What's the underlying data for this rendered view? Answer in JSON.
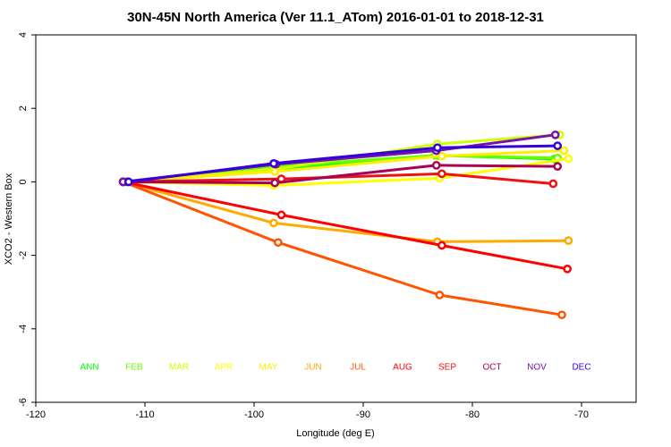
{
  "chart_data": {
    "type": "line",
    "title": "30N-45N North America (Ver 11.1_ATom)   2016-01-01 to 2018-12-31",
    "xlabel": "Longitude (deg E)",
    "ylabel": "XCO2 - Western Box",
    "xlim": [
      -120,
      -65
    ],
    "ylim": [
      -6,
      4
    ],
    "xticks": [
      "-120",
      "-110",
      "-100",
      "-90",
      "-80",
      "-70"
    ],
    "yticks": [
      "-6",
      "-4",
      "-2",
      "0",
      "2",
      "4"
    ],
    "grid": false,
    "legend_position": "bottom",
    "series": [
      {
        "name": "ANN",
        "color": "#00ff00",
        "x": [
          -112,
          -98.2,
          -83.2,
          -72.5
        ],
        "y": [
          0,
          0.32,
          0.72,
          0.62
        ]
      },
      {
        "name": "FEB",
        "color": "#66ff00",
        "x": [
          -112,
          -98.3,
          -83.4,
          -72.2
        ],
        "y": [
          0,
          0.42,
          0.72,
          0.65
        ]
      },
      {
        "name": "MAR",
        "color": "#ccff00",
        "x": [
          -111.8,
          -98.1,
          -83.2,
          -72.0
        ],
        "y": [
          0,
          0.34,
          1.03,
          1.28
        ]
      },
      {
        "name": "APR",
        "color": "#ffff00",
        "x": [
          -112,
          -98.2,
          -83.0,
          -71.2
        ],
        "y": [
          0,
          -0.1,
          0.1,
          0.63
        ]
      },
      {
        "name": "MAY",
        "color": "#ffee00",
        "x": [
          -112,
          -98.1,
          -82.8,
          -71.6
        ],
        "y": [
          0,
          0.28,
          0.7,
          0.85
        ]
      },
      {
        "name": "JUN",
        "color": "#ffaa00",
        "x": [
          -112,
          -98.2,
          -83.2,
          -71.2
        ],
        "y": [
          0,
          -1.12,
          -1.63,
          -1.6
        ]
      },
      {
        "name": "JUL",
        "color": "#ff5500",
        "x": [
          -112,
          -97.8,
          -83.0,
          -71.8
        ],
        "y": [
          0,
          -1.65,
          -3.08,
          -3.62
        ]
      },
      {
        "name": "AUG",
        "color": "#ff0000",
        "x": [
          -112,
          -97.5,
          -82.8,
          -71.3
        ],
        "y": [
          0,
          -0.9,
          -1.73,
          -2.37
        ]
      },
      {
        "name": "SEP",
        "color": "#ee1111",
        "x": [
          -111.6,
          -97.5,
          -82.8,
          -72.6
        ],
        "y": [
          0,
          0.08,
          0.22,
          -0.05
        ]
      },
      {
        "name": "OCT",
        "color": "#aa0055",
        "x": [
          -112,
          -98.1,
          -83.3,
          -72.2
        ],
        "y": [
          0,
          -0.03,
          0.45,
          0.42
        ]
      },
      {
        "name": "NOV",
        "color": "#7711aa",
        "x": [
          -112,
          -98.0,
          -83.3,
          -72.4
        ],
        "y": [
          0,
          0.48,
          0.85,
          1.28
        ]
      },
      {
        "name": "DEC",
        "color": "#3300dd",
        "x": [
          -111.5,
          -98.2,
          -83.2,
          -72.2
        ],
        "y": [
          0,
          0.5,
          0.93,
          0.98
        ]
      }
    ]
  }
}
